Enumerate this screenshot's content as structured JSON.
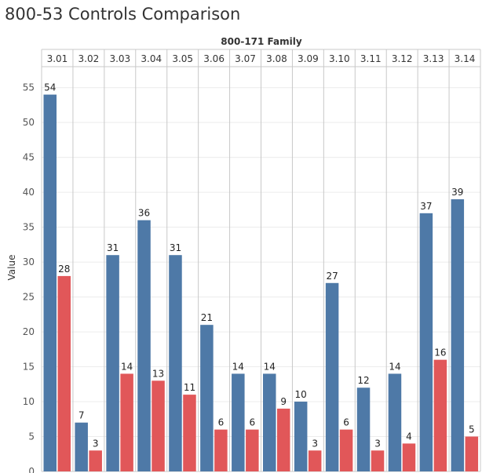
{
  "title": "800-53 Controls Comparison",
  "chart_data": {
    "type": "bar",
    "title": "800-53 Controls Comparison",
    "column_header": "800-171 Family",
    "categories": [
      "3.01",
      "3.02",
      "3.03",
      "3.04",
      "3.05",
      "3.06",
      "3.07",
      "3.08",
      "3.09",
      "3.10",
      "3.11",
      "3.12",
      "3.13",
      "3.14"
    ],
    "series": [
      {
        "color": "#4e79a7",
        "values": [
          54,
          7,
          31,
          36,
          31,
          21,
          14,
          14,
          10,
          27,
          12,
          14,
          37,
          39
        ]
      },
      {
        "color": "#e15759",
        "values": [
          28,
          3,
          14,
          13,
          11,
          6,
          6,
          9,
          3,
          6,
          3,
          4,
          16,
          5
        ]
      }
    ],
    "bar_labels": [
      [
        "54",
        "7",
        "31",
        "36",
        "31",
        "21",
        "14",
        "14",
        "10",
        "27",
        "12",
        "14",
        "37",
        "39"
      ],
      [
        "28",
        "3",
        "14",
        "13",
        "11",
        "6",
        "6",
        "9",
        "3",
        "6",
        "3",
        "4",
        "16",
        "5"
      ]
    ],
    "xlabel": "",
    "ylabel": "Value",
    "ylim": [
      0,
      58
    ],
    "yticks": [
      0,
      5,
      10,
      15,
      20,
      25,
      30,
      35,
      40,
      45,
      50,
      55
    ],
    "grid": true,
    "legend": "none"
  }
}
